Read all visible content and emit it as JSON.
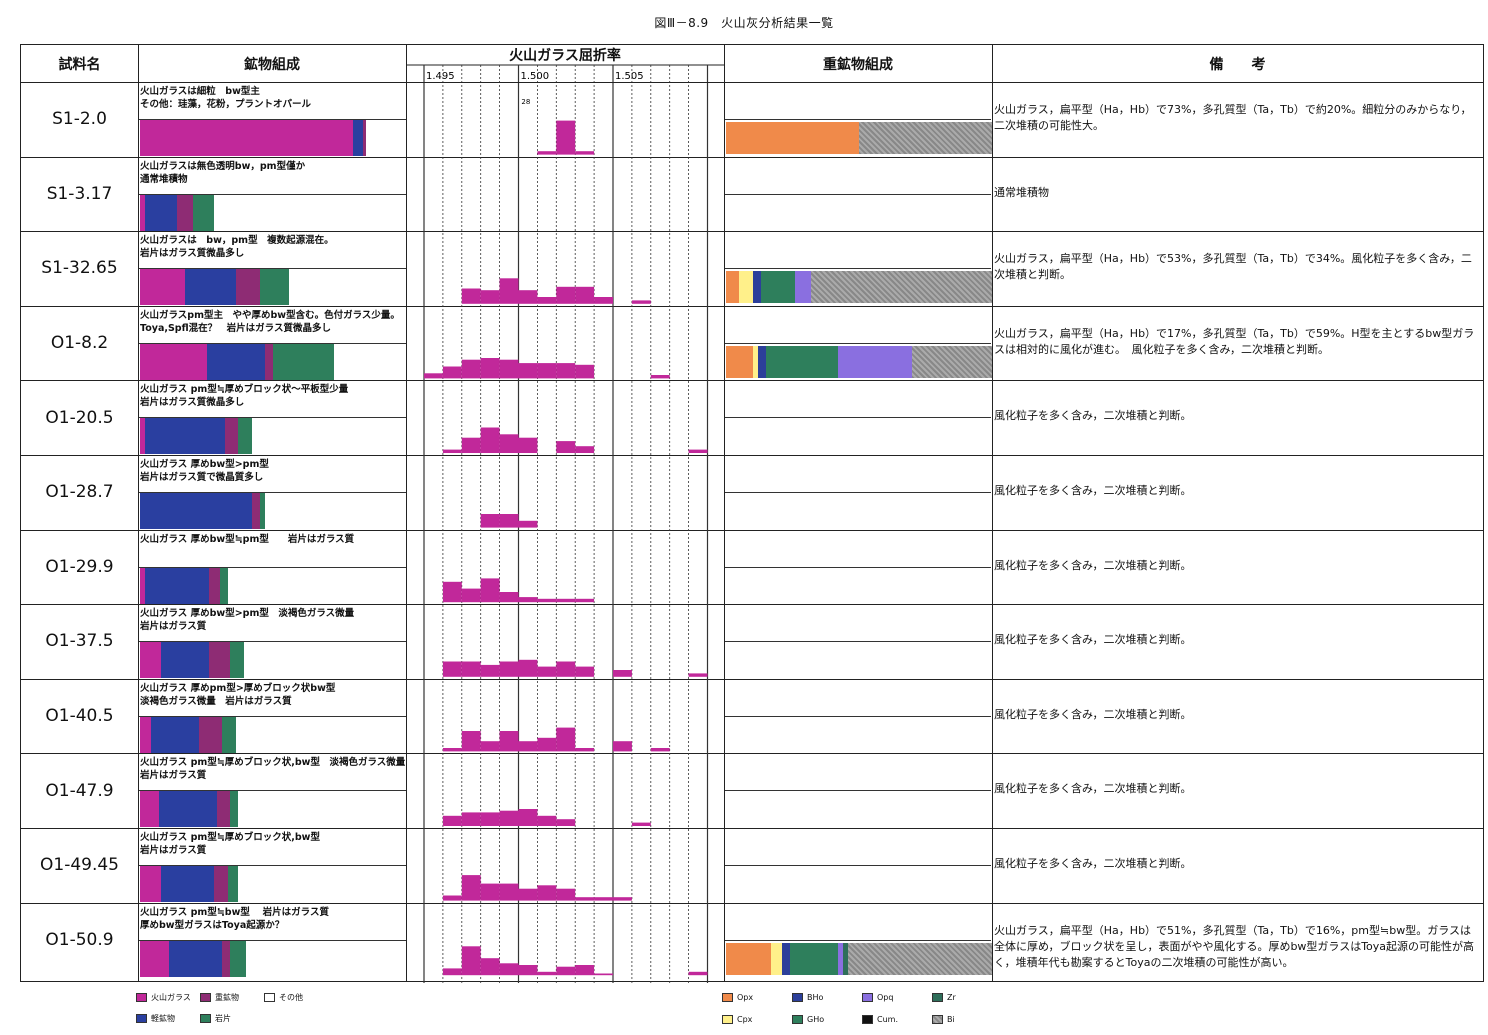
{
  "figure_title": "図Ⅲ－8.9　火山灰分析結果一覧",
  "headers": {
    "sample": "試料名",
    "mineral": "鉱物組成",
    "refraction": "火山ガラス屈折率",
    "heavy": "重鉱物組成",
    "remarks": "備　　考"
  },
  "ri_ticks": [
    "1.495",
    "1.500",
    "1.505"
  ],
  "ri_annotation": "28",
  "colors": {
    "glass": "#c1289a",
    "heavy_mineral": "#8e2c74",
    "other": "#ffffff",
    "light_mineral": "#2a3fa0",
    "rock": "#2e7f5c",
    "Opx": "#f08a4a",
    "Cpx": "#fff08a",
    "BHo": "#2c3f9a",
    "GHo": "#2e7f5c",
    "Opq": "#8a6fe0",
    "Cum": "#111111",
    "Zr": "#2e6e5a",
    "Bi": "#999999"
  },
  "rows": [
    {
      "name": "S1-2.0",
      "desc": "火山ガラスは細粒　bw型主\nその他：珪藻，花粉，プラントオパール",
      "mineral": {
        "glass": 0.8,
        "heavy": 0.01,
        "light": 0.04,
        "rock": 0.0
      },
      "hist": [
        0,
        0,
        0,
        0,
        0,
        0,
        0.1,
        1.0,
        0.1,
        0,
        0,
        0,
        0,
        0,
        0,
        0
      ],
      "heavy": {
        "Opx": 0.5,
        "Bi": 0.5
      },
      "remark": "火山ガラス，扁平型（Ha，Hb）で73%，多孔質型（Ta，Tb）で約20%。細粒分のみからなり，二次堆積の可能性大。"
    },
    {
      "name": "S1-3.17",
      "desc": "火山ガラスは無色透明bw，pm型僅か\n通常堆積物",
      "mineral": {
        "glass": 0.02,
        "heavy": 0.06,
        "light": 0.12,
        "rock": 0.08
      },
      "hist": [
        0,
        0,
        0,
        0,
        0,
        0,
        0,
        0,
        0,
        0,
        0,
        0,
        0,
        0,
        0,
        0
      ],
      "heavy": null,
      "remark": "通常堆積物"
    },
    {
      "name": "S1-32.65",
      "desc": "火山ガラスは　bw，pm型　複数起源混在。\n岩片はガラス質微晶多し",
      "mineral": {
        "glass": 0.17,
        "heavy": 0.09,
        "light": 0.19,
        "rock": 0.11
      },
      "hist": [
        0,
        0,
        0.45,
        0.4,
        0.75,
        0.4,
        0.2,
        0.5,
        0.5,
        0.2,
        0,
        0.1,
        0,
        0,
        0,
        0
      ],
      "heavy": {
        "Cpx": 0.05,
        "Opx": 0.05,
        "BHo": 0.03,
        "GHo": 0.13,
        "Opq": 0.06,
        "Bi": 0.68
      },
      "remark": "火山ガラス，扁平型（Ha，Hb）で53%，多孔質型（Ta，Tb）で34%。風化粒子を多く含み，二次堆積と判断。"
    },
    {
      "name": "O1-8.2",
      "desc": "火山ガラスpm型主　やや厚めbw型含む。色付ガラス少量。Toya,Spfl混在？　岩片はガラス質微晶多し",
      "mineral": {
        "glass": 0.25,
        "heavy": 0.03,
        "light": 0.22,
        "rock": 0.23
      },
      "hist": [
        0.15,
        0.35,
        0.55,
        0.6,
        0.55,
        0.45,
        0.45,
        0.45,
        0.4,
        0,
        0,
        0,
        0.1,
        0,
        0,
        0
      ],
      "heavy": {
        "Opx": 0.1,
        "Cpx": 0.02,
        "BHo": 0.03,
        "GHo": 0.27,
        "Opq": 0.28,
        "Bi": 0.3
      },
      "remark": "火山ガラス，扁平型（Ha，Hb）で17%，多孔質型（Ta，Tb）で59%。H型を主とするbw型ガラスは相対的に風化が進む。　風化粒子を多く含み，二次堆積と判断。"
    },
    {
      "name": "O1-20.5",
      "desc": "火山ガラス pm型≒厚めブロック状～平板型少量\n岩片はガラス質微晶多し",
      "mineral": {
        "glass": 0.02,
        "heavy": 0.05,
        "light": 0.3,
        "rock": 0.05
      },
      "hist": [
        0,
        0.1,
        0.45,
        0.75,
        0.55,
        0.45,
        0,
        0.35,
        0.2,
        0,
        0,
        0,
        0,
        0,
        0.1,
        0
      ],
      "heavy": null,
      "remark": "風化粒子を多く含み，二次堆積と判断。"
    },
    {
      "name": "O1-28.7",
      "desc": "火山ガラス 厚めbw型>pm型\n岩片はガラス質で微晶質多し",
      "mineral": {
        "glass": 0.0,
        "heavy": 0.03,
        "light": 0.42,
        "rock": 0.02
      },
      "hist": [
        0,
        0,
        0,
        0.4,
        0.4,
        0.2,
        0,
        0,
        0,
        0,
        0,
        0,
        0,
        0,
        0,
        0
      ],
      "heavy": null,
      "remark": "風化粒子を多く含み，二次堆積と判断。"
    },
    {
      "name": "O1-29.9",
      "desc": "火山ガラス 厚めbw型≒pm型　　岩片はガラス質",
      "mineral": {
        "glass": 0.02,
        "heavy": 0.04,
        "light": 0.24,
        "rock": 0.03
      },
      "hist": [
        0,
        0.6,
        0.4,
        0.7,
        0.3,
        0.15,
        0.1,
        0.1,
        0.1,
        0,
        0,
        0,
        0,
        0,
        0,
        0
      ],
      "heavy": null,
      "remark": "風化粒子を多く含み，二次堆積と判断。"
    },
    {
      "name": "O1-37.5",
      "desc": "火山ガラス 厚めbw型>pm型　淡褐色ガラス微量\n岩片はガラス質",
      "mineral": {
        "glass": 0.08,
        "heavy": 0.08,
        "light": 0.18,
        "rock": 0.05
      },
      "hist": [
        0,
        0.45,
        0.45,
        0.35,
        0.45,
        0.5,
        0.3,
        0.45,
        0.3,
        0,
        0.2,
        0,
        0,
        0,
        0.1,
        0
      ],
      "heavy": null,
      "remark": "風化粒子を多く含み，二次堆積と判断。"
    },
    {
      "name": "O1-40.5",
      "desc": "火山ガラス 厚めpm型>厚めブロック状bw型\n淡褐色ガラス微量　岩片はガラス質",
      "mineral": {
        "glass": 0.04,
        "heavy": 0.09,
        "light": 0.18,
        "rock": 0.05
      },
      "hist": [
        0,
        0.1,
        0.6,
        0.3,
        0.6,
        0.3,
        0.4,
        0.7,
        0.1,
        0,
        0.3,
        0,
        0.1,
        0,
        0,
        0
      ],
      "heavy": null,
      "remark": "風化粒子を多く含み，二次堆積と判断。"
    },
    {
      "name": "O1-47.9",
      "desc": "火山ガラス pm型≒厚めブロック状,bw型　淡褐色ガラス微量　岩片はガラス質",
      "mineral": {
        "glass": 0.07,
        "heavy": 0.05,
        "light": 0.22,
        "rock": 0.03
      },
      "hist": [
        0,
        0.3,
        0.4,
        0.4,
        0.45,
        0.5,
        0.3,
        0.2,
        0,
        0,
        0,
        0.1,
        0,
        0,
        0,
        0
      ],
      "heavy": null,
      "remark": "風化粒子を多く含み，二次堆積と判断。"
    },
    {
      "name": "O1-49.45",
      "desc": "火山ガラス pm型≒厚めブロック状,bw型\n岩片はガラス質",
      "mineral": {
        "glass": 0.08,
        "heavy": 0.05,
        "light": 0.2,
        "rock": 0.04
      },
      "hist": [
        0,
        0.15,
        0.75,
        0.5,
        0.5,
        0.35,
        0.45,
        0.35,
        0.1,
        0.1,
        0.1,
        0,
        0,
        0,
        0,
        0
      ],
      "heavy": null,
      "remark": "風化粒子を多く含み，二次堆積と判断。"
    },
    {
      "name": "O1-50.9",
      "desc": "火山ガラス pm型≒bw型　 岩片はガラス質\n厚めbw型ガラスはToya起源か？",
      "mineral": {
        "glass": 0.11,
        "heavy": 0.03,
        "light": 0.2,
        "rock": 0.06
      },
      "hist": [
        0,
        0.2,
        0.85,
        0.5,
        0.35,
        0.3,
        0.1,
        0.25,
        0.3,
        0.05,
        0,
        0,
        0,
        0,
        0.1,
        0
      ],
      "heavy": {
        "Opx": 0.17,
        "Cpx": 0.04,
        "BHo": 0.03,
        "GHo": 0.18,
        "Opq": 0.02,
        "Zr": 0.02,
        "Bi": 0.54
      },
      "remark": "火山ガラス，扁平型（Ha，Hb）で51%，多孔質型（Ta，Tb）で16%，pm型≒bw型。ガラスは全体に厚め，ブロック状を呈し，表面がやや風化する。厚めbw型ガラスはToya起源の可能性が高く，堆積年代も勘案するとToyaの二次堆積の可能性が高い。"
    }
  ],
  "legend_mineral": [
    {
      "key": "glass",
      "label": "火山ガラス"
    },
    {
      "key": "heavy_mineral",
      "label": "重鉱物"
    },
    {
      "key": "other",
      "label": "その他"
    },
    {
      "key": "light_mineral",
      "label": "軽鉱物"
    },
    {
      "key": "rock",
      "label": "岩片"
    }
  ],
  "legend_heavy": [
    {
      "key": "Opx",
      "label": "Opx"
    },
    {
      "key": "BHo",
      "label": "BHo"
    },
    {
      "key": "Opq",
      "label": "Opq"
    },
    {
      "key": "Zr",
      "label": "Zr"
    },
    {
      "key": "Cpx",
      "label": "Cpx"
    },
    {
      "key": "GHo",
      "label": "GHo"
    },
    {
      "key": "Cum",
      "label": "Cum."
    },
    {
      "key": "Bi",
      "label": "Bi"
    }
  ]
}
